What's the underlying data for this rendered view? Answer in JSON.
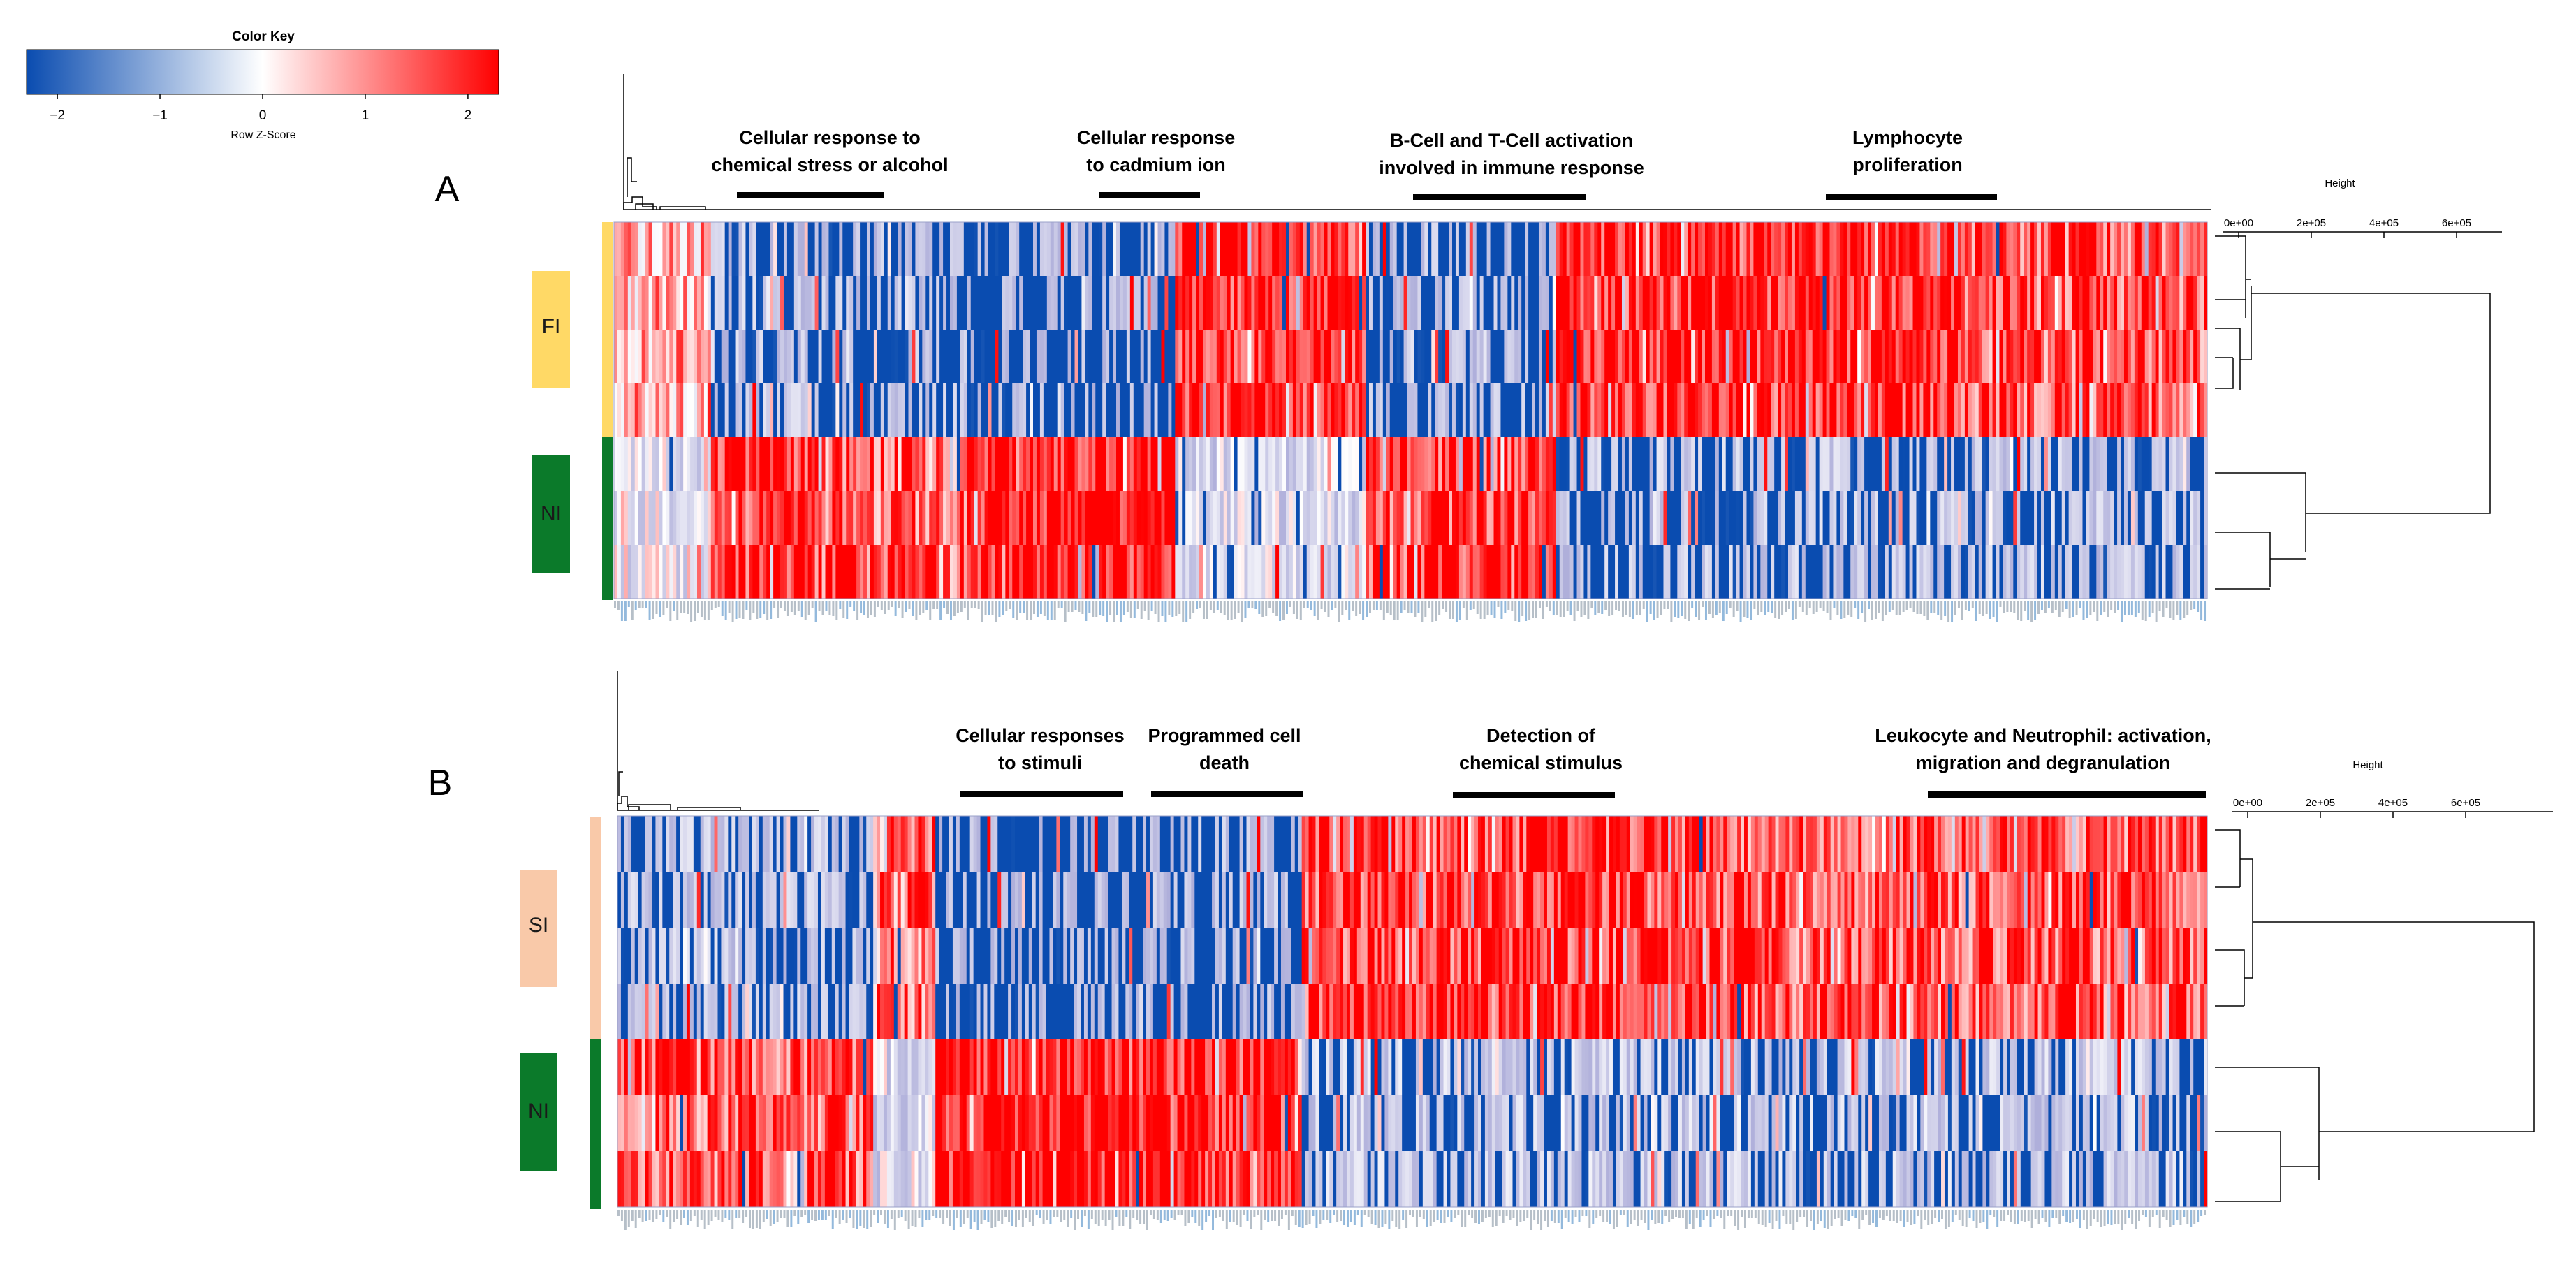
{
  "chart_data": [
    {
      "panel": "A",
      "type": "heatmap",
      "row_groups": [
        {
          "label": "FI",
          "rows": 4,
          "color": "#ffd966"
        },
        {
          "label": "NI",
          "rows": 3,
          "color": "#0b7a2a"
        }
      ],
      "annotations": [
        {
          "lines": [
            "Cellular response to",
            "chemical stress or alcohol"
          ]
        },
        {
          "lines": [
            "Cellular response",
            "to cadmium ion"
          ]
        },
        {
          "lines": [
            "B-Cell and T-Cell activation",
            "involved in immune response"
          ]
        },
        {
          "lines": [
            "Lymphocyte",
            "proliferation"
          ]
        }
      ],
      "dendrogram": {
        "axis_title": "Height",
        "ticks": [
          "0e+00",
          "2e+05",
          "4e+05",
          "6e+05"
        ]
      },
      "block_scheme": [
        {
          "w": 6,
          "fi": 0.3,
          "ni": -0.2
        },
        {
          "w": 6,
          "fi": -0.8,
          "ni": 0.9
        },
        {
          "w": 10,
          "fi": -0.9,
          "ni": 0.6
        },
        {
          "w": 13,
          "fi": -1.0,
          "ni": 1.0
        },
        {
          "w": 12,
          "fi": 0.9,
          "ni": -0.4
        },
        {
          "w": 12,
          "fi": -0.9,
          "ni": 0.8
        },
        {
          "w": 25,
          "fi": 0.9,
          "ni": -0.8
        },
        {
          "w": 16,
          "fi": 0.7,
          "ni": -0.8
        }
      ]
    },
    {
      "panel": "B",
      "type": "heatmap",
      "row_groups": [
        {
          "label": "SI",
          "rows": 4,
          "color": "#f9c9a9"
        },
        {
          "label": "NI",
          "rows": 3,
          "color": "#0b7a2a"
        }
      ],
      "annotations": [
        {
          "lines": [
            "Cellular responses",
            "to stimuli"
          ]
        },
        {
          "lines": [
            "Programmed cell",
            "death"
          ]
        },
        {
          "lines": [
            "Detection of",
            "chemical stimulus"
          ]
        },
        {
          "lines": [
            "Leukocyte and Neutrophil: activation,",
            "migration and degranulation"
          ]
        }
      ],
      "dendrogram": {
        "axis_title": "Height",
        "ticks": [
          "0e+00",
          "2e+05",
          "4e+05",
          "6e+05"
        ]
      },
      "block_scheme": [
        {
          "w": 16,
          "fi": -0.8,
          "ni": 0.7
        },
        {
          "w": 4,
          "fi": 0.6,
          "ni": -0.3
        },
        {
          "w": 12,
          "fi": -1.0,
          "ni": 1.0
        },
        {
          "w": 11,
          "fi": -0.9,
          "ni": 0.9
        },
        {
          "w": 26,
          "fi": 0.8,
          "ni": -0.7
        },
        {
          "w": 31,
          "fi": 0.7,
          "ni": -0.7
        }
      ]
    }
  ],
  "color_key": {
    "title": "Color Key",
    "xlabel": "Row Z-Score",
    "ticks": [
      "−2",
      "−1",
      "0",
      "1",
      "2"
    ],
    "range": [
      -2.3,
      2.3
    ],
    "low_color": "#0a4cb0",
    "mid_color": "#ffffff",
    "high_color": "#ff0000"
  },
  "panel_labels": [
    "A",
    "B"
  ],
  "random_seed": 20240611
}
